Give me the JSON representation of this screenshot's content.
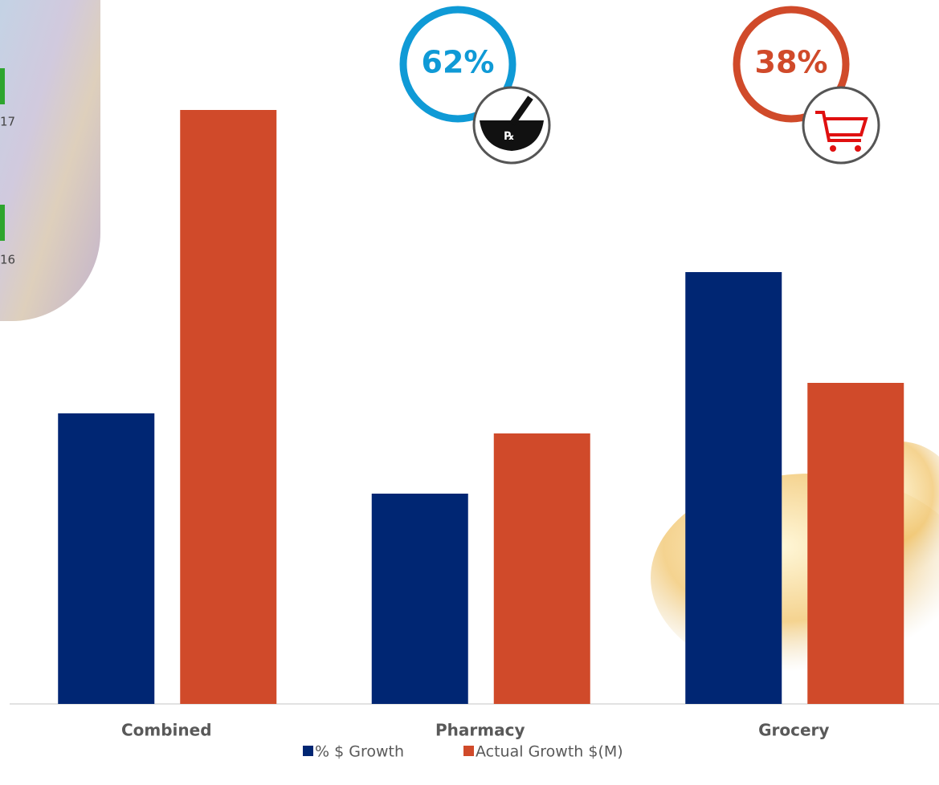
{
  "chart_data": {
    "type": "bar",
    "categories": [
      "Combined",
      "Pharmacy",
      "Grocery"
    ],
    "series": [
      {
        "name": "% $ Growth",
        "color": "#002673",
        "values": [
          362,
          262,
          538
        ]
      },
      {
        "name": "Actual Growth $(M)",
        "color": "#d04a2a",
        "values": [
          740,
          337,
          400
        ]
      }
    ],
    "ylim": [
      0,
      800
    ],
    "annotations": [
      {
        "text": "62%",
        "color": "#0f9ad6"
      },
      {
        "text": "38%",
        "color": "#d04a2a"
      }
    ],
    "fragments": [
      "17",
      "16"
    ]
  }
}
